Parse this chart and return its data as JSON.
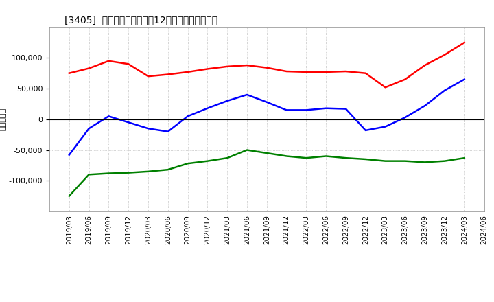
{
  "title": "[3405]  キャッシュフローの12か月移動合計の推移",
  "ylabel": "（百万円）",
  "ylim": [
    -150000,
    150000
  ],
  "yticks": [
    -100000,
    -50000,
    0,
    50000,
    100000
  ],
  "background_color": "#ffffff",
  "grid_color": "#aaaaaa",
  "x_labels": [
    "2019/03",
    "2019/06",
    "2019/09",
    "2019/12",
    "2020/03",
    "2020/06",
    "2020/09",
    "2020/12",
    "2021/03",
    "2021/06",
    "2021/09",
    "2021/12",
    "2022/03",
    "2022/06",
    "2022/09",
    "2022/12",
    "2023/03",
    "2023/06",
    "2023/09",
    "2023/12",
    "2024/03",
    "2024/06"
  ],
  "operating_cf": [
    75000,
    83000,
    95000,
    90000,
    70000,
    73000,
    77000,
    82000,
    86000,
    88000,
    84000,
    78000,
    77000,
    77000,
    78000,
    75000,
    52000,
    65000,
    88000,
    105000,
    125000,
    null
  ],
  "investing_cf": [
    -125000,
    -90000,
    -88000,
    -87000,
    -85000,
    -82000,
    -72000,
    -68000,
    -63000,
    -50000,
    -55000,
    -60000,
    -63000,
    -60000,
    -63000,
    -65000,
    -68000,
    -68000,
    -70000,
    -68000,
    -63000,
    null
  ],
  "free_cf": [
    -58000,
    -15000,
    5000,
    -5000,
    -15000,
    -20000,
    5000,
    18000,
    30000,
    40000,
    28000,
    15000,
    15000,
    18000,
    17000,
    -18000,
    -12000,
    3000,
    22000,
    47000,
    65000,
    null
  ],
  "line_colors": {
    "operating": "#ff0000",
    "investing": "#008000",
    "free": "#0000ff"
  }
}
